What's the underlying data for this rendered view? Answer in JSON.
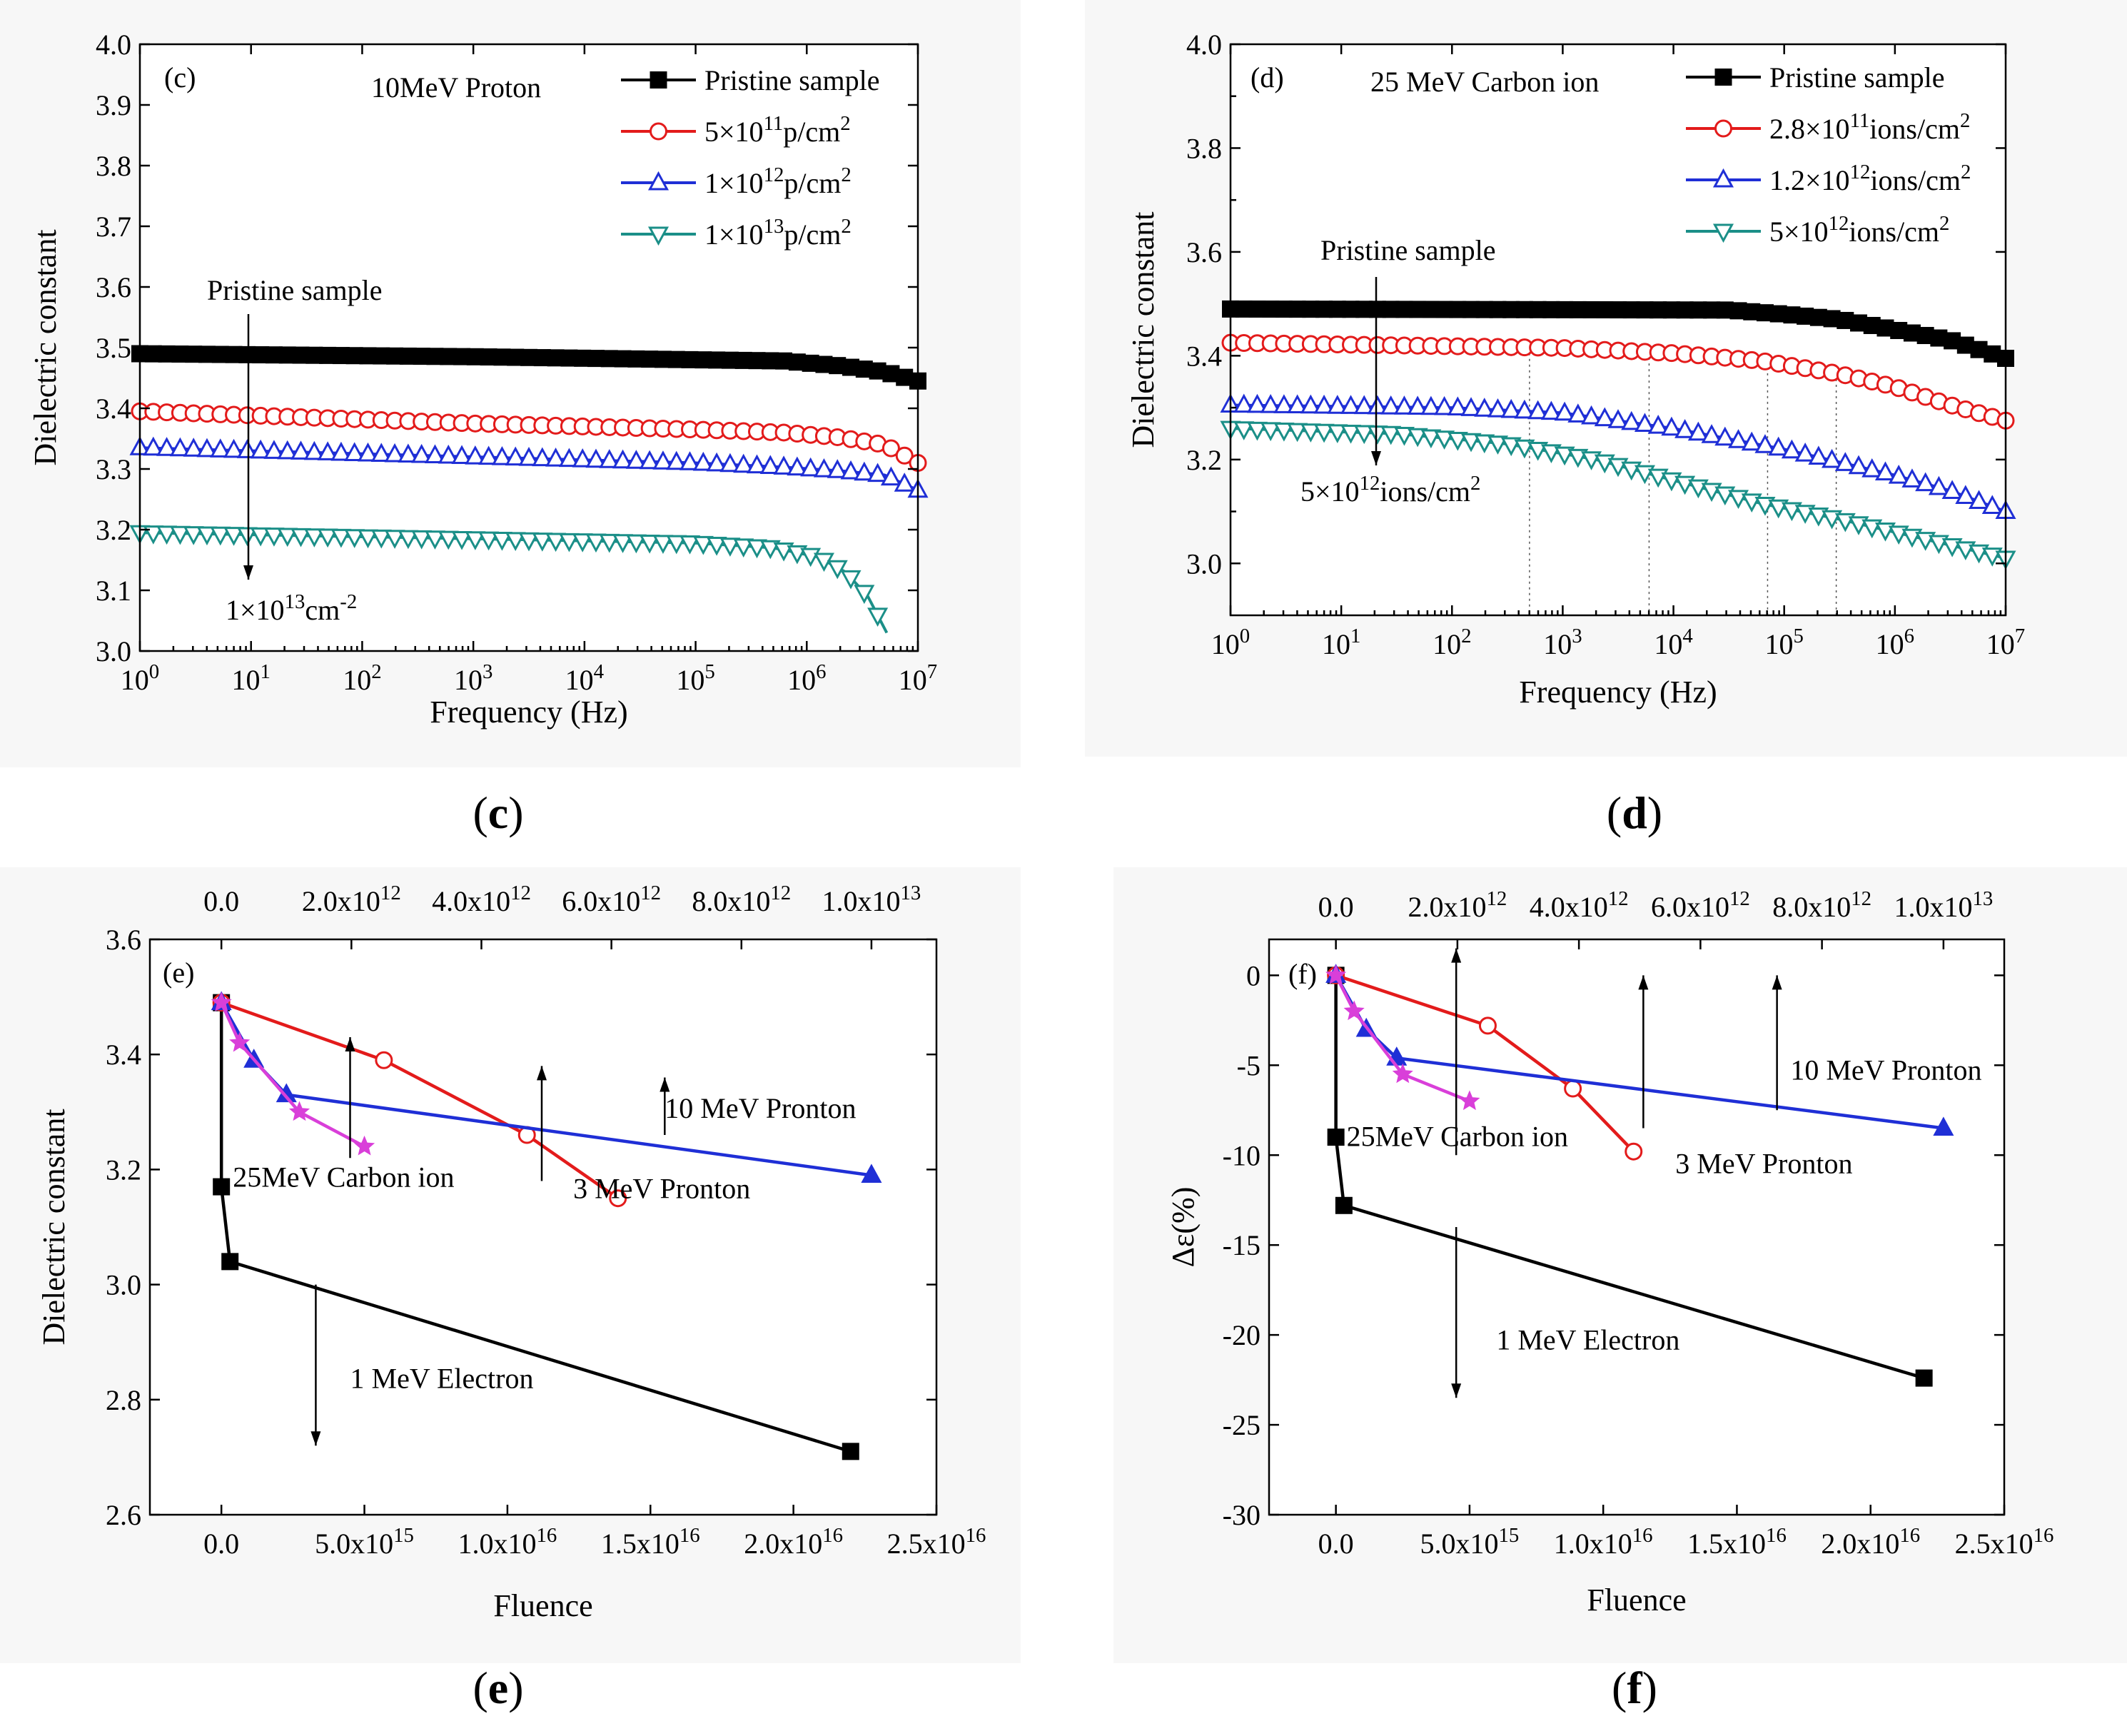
{
  "chart_data": [
    {
      "id": "c",
      "type": "line",
      "panel_tag": "(c)",
      "caption_letter": "c",
      "title": "10MeV Proton",
      "xlabel": "Frequency (Hz)",
      "ylabel": "Dielectric constant",
      "xscale": "log",
      "xlim_exp": [
        0,
        7
      ],
      "xtick_exps": [
        "0",
        "1",
        "2",
        "3",
        "4",
        "5",
        "6",
        "7"
      ],
      "ylim": [
        3.0,
        4.0
      ],
      "yticks": [
        3.0,
        3.1,
        3.2,
        3.3,
        3.4,
        3.5,
        3.6,
        3.7,
        3.8,
        3.9,
        4.0
      ],
      "ytick_labels": [
        "3.0",
        "3.1",
        "3.2",
        "3.3",
        "3.4",
        "3.5",
        "3.6",
        "3.7",
        "3.8",
        "3.9",
        "4.0"
      ],
      "legend": "top-right",
      "series": [
        {
          "name": "Pristine sample",
          "label_html": "Pristine sample",
          "color": "#000000",
          "marker": "square-filled",
          "points": [
            [
              0,
              3.49
            ],
            [
              3,
              3.485
            ],
            [
              5,
              3.48
            ],
            [
              5.8,
              3.478
            ],
            [
              6.3,
              3.47
            ],
            [
              6.7,
              3.46
            ],
            [
              7,
              3.445
            ]
          ]
        },
        {
          "name": "5×10^11 p/cm^2",
          "label_base": "5×10",
          "label_exp": "11",
          "label_unit": "p/cm",
          "label_unit_exp": "2",
          "color": "#e31b1b",
          "marker": "circle-open",
          "points": [
            [
              0,
              3.395
            ],
            [
              3,
              3.375
            ],
            [
              5,
              3.365
            ],
            [
              5.8,
              3.36
            ],
            [
              6.3,
              3.352
            ],
            [
              6.7,
              3.34
            ],
            [
              7,
              3.31
            ]
          ]
        },
        {
          "name": "1×10^12 p/cm^2",
          "label_base": "1×10",
          "label_exp": "12",
          "label_unit": "p/cm",
          "label_unit_exp": "2",
          "color": "#1f2fd6",
          "marker": "triangle-up-open",
          "points": [
            [
              0,
              3.335
            ],
            [
              3,
              3.32
            ],
            [
              5,
              3.31
            ],
            [
              5.8,
              3.303
            ],
            [
              6.3,
              3.297
            ],
            [
              6.7,
              3.29
            ],
            [
              7,
              3.265
            ]
          ]
        },
        {
          "name": "1×10^13 p/cm^2",
          "label_base": "1×10",
          "label_exp": "13",
          "label_unit": "p/cm",
          "label_unit_exp": "2",
          "color": "#1b8f88",
          "marker": "triangle-down-open",
          "points": [
            [
              0,
              3.195
            ],
            [
              3,
              3.185
            ],
            [
              5,
              3.178
            ],
            [
              5.7,
              3.17
            ],
            [
              6.1,
              3.155
            ],
            [
              6.35,
              3.13
            ],
            [
              6.55,
              3.09
            ],
            [
              6.72,
              3.03
            ]
          ]
        }
      ],
      "annotations": [
        {
          "text": "Pristine sample",
          "arrow": "down",
          "at": [
            1.0,
            3.56
          ],
          "arrow_to": [
            1.0,
            3.1
          ]
        },
        {
          "text_base": "1×10",
          "text_exp": "13",
          "text_unit": "cm",
          "text_unit_exp": "-2",
          "at": [
            0.8,
            3.07
          ]
        }
      ]
    },
    {
      "id": "d",
      "type": "line",
      "panel_tag": "(d)",
      "caption_letter": "d",
      "title": "25 MeV Carbon ion",
      "xlabel": "Frequency (Hz)",
      "ylabel": "Dielectric constant",
      "xscale": "log",
      "xlim_exp": [
        0,
        7
      ],
      "xtick_exps": [
        "0",
        "1",
        "2",
        "3",
        "4",
        "5",
        "6",
        "7"
      ],
      "ylim": [
        2.9,
        4.0
      ],
      "yticks": [
        3.0,
        3.2,
        3.4,
        3.6,
        3.8,
        4.0
      ],
      "ytick_labels": [
        "3.0",
        "3.2",
        "3.4",
        "3.6",
        "3.8",
        "4.0"
      ],
      "legend": "top-right",
      "series": [
        {
          "name": "Pristine sample",
          "label_html": "Pristine sample",
          "color": "#000000",
          "marker": "square-filled",
          "points": [
            [
              0,
              3.49
            ],
            [
              4.5,
              3.488
            ],
            [
              5.0,
              3.48
            ],
            [
              5.5,
              3.47
            ],
            [
              6.0,
              3.45
            ],
            [
              6.5,
              3.43
            ],
            [
              7,
              3.395
            ]
          ]
        },
        {
          "name": "2.8×10^11 ions/cm^2",
          "label_base": "2.8×10",
          "label_exp": "11",
          "label_unit": "ions/cm",
          "label_unit_exp": "2",
          "color": "#e31b1b",
          "marker": "circle-open",
          "points": [
            [
              0,
              3.425
            ],
            [
              3,
              3.415
            ],
            [
              4,
              3.405
            ],
            [
              4.8,
              3.39
            ],
            [
              5.5,
              3.365
            ],
            [
              6.0,
              3.34
            ],
            [
              6.5,
              3.305
            ],
            [
              7,
              3.275
            ]
          ]
        },
        {
          "name": "1.2×10^12 ions/cm^2",
          "label_base": "1.2×10",
          "label_exp": "12",
          "label_unit": "ions/cm",
          "label_unit_exp": "2",
          "color": "#1f2fd6",
          "marker": "triangle-up-open",
          "points": [
            [
              0,
              3.305
            ],
            [
              2,
              3.3
            ],
            [
              3,
              3.29
            ],
            [
              4,
              3.26
            ],
            [
              5,
              3.22
            ],
            [
              5.5,
              3.195
            ],
            [
              6,
              3.17
            ],
            [
              6.5,
              3.14
            ],
            [
              7,
              3.1
            ]
          ]
        },
        {
          "name": "5×10^12 ions/cm^2",
          "label_base": "5×10",
          "label_exp": "12",
          "label_unit": "ions/cm",
          "label_unit_exp": "2",
          "color": "#1b8f88",
          "marker": "triangle-down-open",
          "points": [
            [
              0,
              3.26
            ],
            [
              1.5,
              3.25
            ],
            [
              2.5,
              3.23
            ],
            [
              3.3,
              3.2
            ],
            [
              4,
              3.16
            ],
            [
              4.8,
              3.115
            ],
            [
              5.5,
              3.085
            ],
            [
              6,
              3.06
            ],
            [
              6.5,
              3.035
            ],
            [
              7,
              3.01
            ]
          ]
        }
      ],
      "guide_lines_exp": [
        2.7,
        3.78,
        4.85,
        5.47
      ],
      "annotations": [
        {
          "text": "Pristine sample",
          "arrow": "down",
          "at": [
            1.3,
            3.595
          ],
          "arrow_to": [
            1.3,
            3.25
          ]
        },
        {
          "text_base": "5×10",
          "text_exp": "12",
          "text_unit": "ions/cm",
          "text_unit_exp": "2",
          "at": [
            0.6,
            3.13
          ]
        }
      ]
    },
    {
      "id": "e",
      "type": "line",
      "panel_tag": "(e)",
      "caption_letter": "e",
      "xlabel": "Fluence",
      "ylabel": "Dielectric constant",
      "xlim": [
        -2500000000000000.0,
        2.5e+16
      ],
      "xticks": [
        0,
        5000000000000000.0,
        1e+16,
        1.5e+16,
        2e+16,
        2.5e+16
      ],
      "xtick_bases": [
        "0.0",
        "5.0x10",
        "1.0x10",
        "1.5x10",
        "2.0x10",
        "2.5x10"
      ],
      "xtick_exps": [
        "",
        "15",
        "16",
        "16",
        "16",
        "16"
      ],
      "top_xlim": [
        -1100000000000.0,
        11000000000000.0
      ],
      "top_xticks": [
        0,
        2000000000000.0,
        4000000000000.0,
        6000000000000.0,
        8000000000000.0,
        10000000000000.0
      ],
      "top_xtick_bases": [
        "0.0",
        "2.0x10",
        "4.0x10",
        "6.0x10",
        "8.0x10",
        "1.0x10"
      ],
      "top_xtick_exps": [
        "",
        "12",
        "12",
        "12",
        "12",
        "13"
      ],
      "ylim": [
        2.6,
        3.6
      ],
      "yticks": [
        2.6,
        2.8,
        3.0,
        3.2,
        3.4,
        3.6
      ],
      "ytick_labels": [
        "2.6",
        "2.8",
        "3.0",
        "3.2",
        "3.4",
        "3.6"
      ],
      "series": [
        {
          "name": "1 MeV Electron",
          "axis": "bottom",
          "color": "#000000",
          "marker": "square-filled",
          "points": [
            [
              0,
              3.49
            ],
            [
              0,
              3.17
            ],
            [
              300000000000000.0,
              3.04
            ],
            [
              2.2e+16,
              2.71
            ]
          ]
        },
        {
          "name": "3 MeV Pronton",
          "axis": "top",
          "color": "#e31b1b",
          "marker": "circle-open",
          "points": [
            [
              0,
              3.49
            ],
            [
              2500000000000.0,
              3.39
            ],
            [
              4700000000000.0,
              3.26
            ],
            [
              6100000000000.0,
              3.15
            ]
          ]
        },
        {
          "name": "10 MeV Pronton",
          "axis": "top",
          "color": "#1f2fd6",
          "marker": "triangle-up-filled",
          "points": [
            [
              0,
              3.49
            ],
            [
              500000000000.0,
              3.39
            ],
            [
              1000000000000.0,
              3.33
            ],
            [
              10000000000000.0,
              3.19
            ]
          ]
        },
        {
          "name": "25MeV Carbon ion",
          "axis": "top",
          "color": "#d93fd9",
          "marker": "star",
          "points": [
            [
              0,
              3.49
            ],
            [
              280000000000.0,
              3.42
            ],
            [
              1200000000000.0,
              3.3
            ],
            [
              2200000000000.0,
              3.24
            ]
          ]
        }
      ],
      "annotations": [
        {
          "text": "25MeV Carbon ion",
          "at": [
            400000000000000.0,
            3.17
          ]
        },
        {
          "text": "3 MeV Pronton",
          "at": [
            1.23e+16,
            3.15
          ]
        },
        {
          "text": "10 MeV Pronton",
          "at": [
            1.55e+16,
            3.29
          ]
        },
        {
          "text": "1 MeV Electron",
          "at": [
            4500000000000000.0,
            2.82
          ]
        }
      ],
      "arrows": [
        {
          "x": 4500000000000000.0,
          "from": 3.22,
          "to": 3.43,
          "dir": "up"
        },
        {
          "x": 1.12e+16,
          "from": 3.18,
          "to": 3.38,
          "dir": "up"
        },
        {
          "x": 1.55e+16,
          "from": 3.26,
          "to": 3.36,
          "dir": "up"
        },
        {
          "x": 3300000000000000.0,
          "from": 3.0,
          "to": 2.72,
          "dir": "down"
        }
      ]
    },
    {
      "id": "f",
      "type": "line",
      "panel_tag": "(f)",
      "caption_letter": "f",
      "xlabel": "Fluence",
      "ylabel": "Δε(%)",
      "xlim": [
        -2500000000000000.0,
        2.5e+16
      ],
      "xticks": [
        0,
        5000000000000000.0,
        1e+16,
        1.5e+16,
        2e+16,
        2.5e+16
      ],
      "xtick_bases": [
        "0.0",
        "5.0x10",
        "1.0x10",
        "1.5x10",
        "2.0x10",
        "2.5x10"
      ],
      "xtick_exps": [
        "",
        "15",
        "16",
        "16",
        "16",
        "16"
      ],
      "top_xlim": [
        -1100000000000.0,
        11000000000000.0
      ],
      "top_xticks": [
        0,
        2000000000000.0,
        4000000000000.0,
        6000000000000.0,
        8000000000000.0,
        10000000000000.0
      ],
      "top_xtick_bases": [
        "0.0",
        "2.0x10",
        "4.0x10",
        "6.0x10",
        "8.0x10",
        "1.0x10"
      ],
      "top_xtick_exps": [
        "",
        "12",
        "12",
        "12",
        "12",
        "13"
      ],
      "ylim": [
        -30,
        2
      ],
      "yticks": [
        -30,
        -25,
        -20,
        -15,
        -10,
        -5,
        0
      ],
      "ytick_labels": [
        "-30",
        "-25",
        "-20",
        "-15",
        "-10",
        "-5",
        "0"
      ],
      "series": [
        {
          "name": "1 MeV Electron",
          "axis": "bottom",
          "color": "#000000",
          "marker": "square-filled",
          "points": [
            [
              0,
              0
            ],
            [
              0,
              -9
            ],
            [
              300000000000000.0,
              -12.8
            ],
            [
              2.2e+16,
              -22.4
            ]
          ]
        },
        {
          "name": "3 MeV Pronton",
          "axis": "top",
          "color": "#e31b1b",
          "marker": "circle-open",
          "points": [
            [
              0,
              0
            ],
            [
              2500000000000.0,
              -2.8
            ],
            [
              3900000000000.0,
              -6.3
            ],
            [
              4900000000000.0,
              -9.8
            ]
          ]
        },
        {
          "name": "10 MeV Pronton",
          "axis": "top",
          "color": "#1f2fd6",
          "marker": "triangle-up-filled",
          "points": [
            [
              0,
              0
            ],
            [
              500000000000.0,
              -3
            ],
            [
              1000000000000.0,
              -4.6
            ],
            [
              10000000000000.0,
              -8.5
            ]
          ]
        },
        {
          "name": "25MeV Carbon ion",
          "axis": "top",
          "color": "#d93fd9",
          "marker": "star",
          "points": [
            [
              0,
              0
            ],
            [
              300000000000.0,
              -2
            ],
            [
              1100000000000.0,
              -5.5
            ],
            [
              2200000000000.0,
              -7
            ]
          ]
        }
      ],
      "annotations": [
        {
          "text": "25MeV Carbon ion",
          "at": [
            400000000000000.0,
            -9.5
          ]
        },
        {
          "text": "3 MeV Pronton",
          "at": [
            1.27e+16,
            -11
          ]
        },
        {
          "text": "10 MeV Pronton",
          "at": [
            1.7e+16,
            -5.8
          ]
        },
        {
          "text": "1 MeV Electron",
          "at": [
            6000000000000000.0,
            -20.8
          ]
        }
      ],
      "arrows": [
        {
          "x": 4500000000000000.0,
          "from": -10,
          "to": 1.5,
          "dir": "up"
        },
        {
          "x": 1.15e+16,
          "from": -8.5,
          "to": 0,
          "dir": "up"
        },
        {
          "x": 1.65e+16,
          "from": -7.5,
          "to": 0,
          "dir": "up"
        },
        {
          "x": 4500000000000000.0,
          "from": -14,
          "to": -23.5,
          "dir": "down"
        }
      ]
    }
  ]
}
